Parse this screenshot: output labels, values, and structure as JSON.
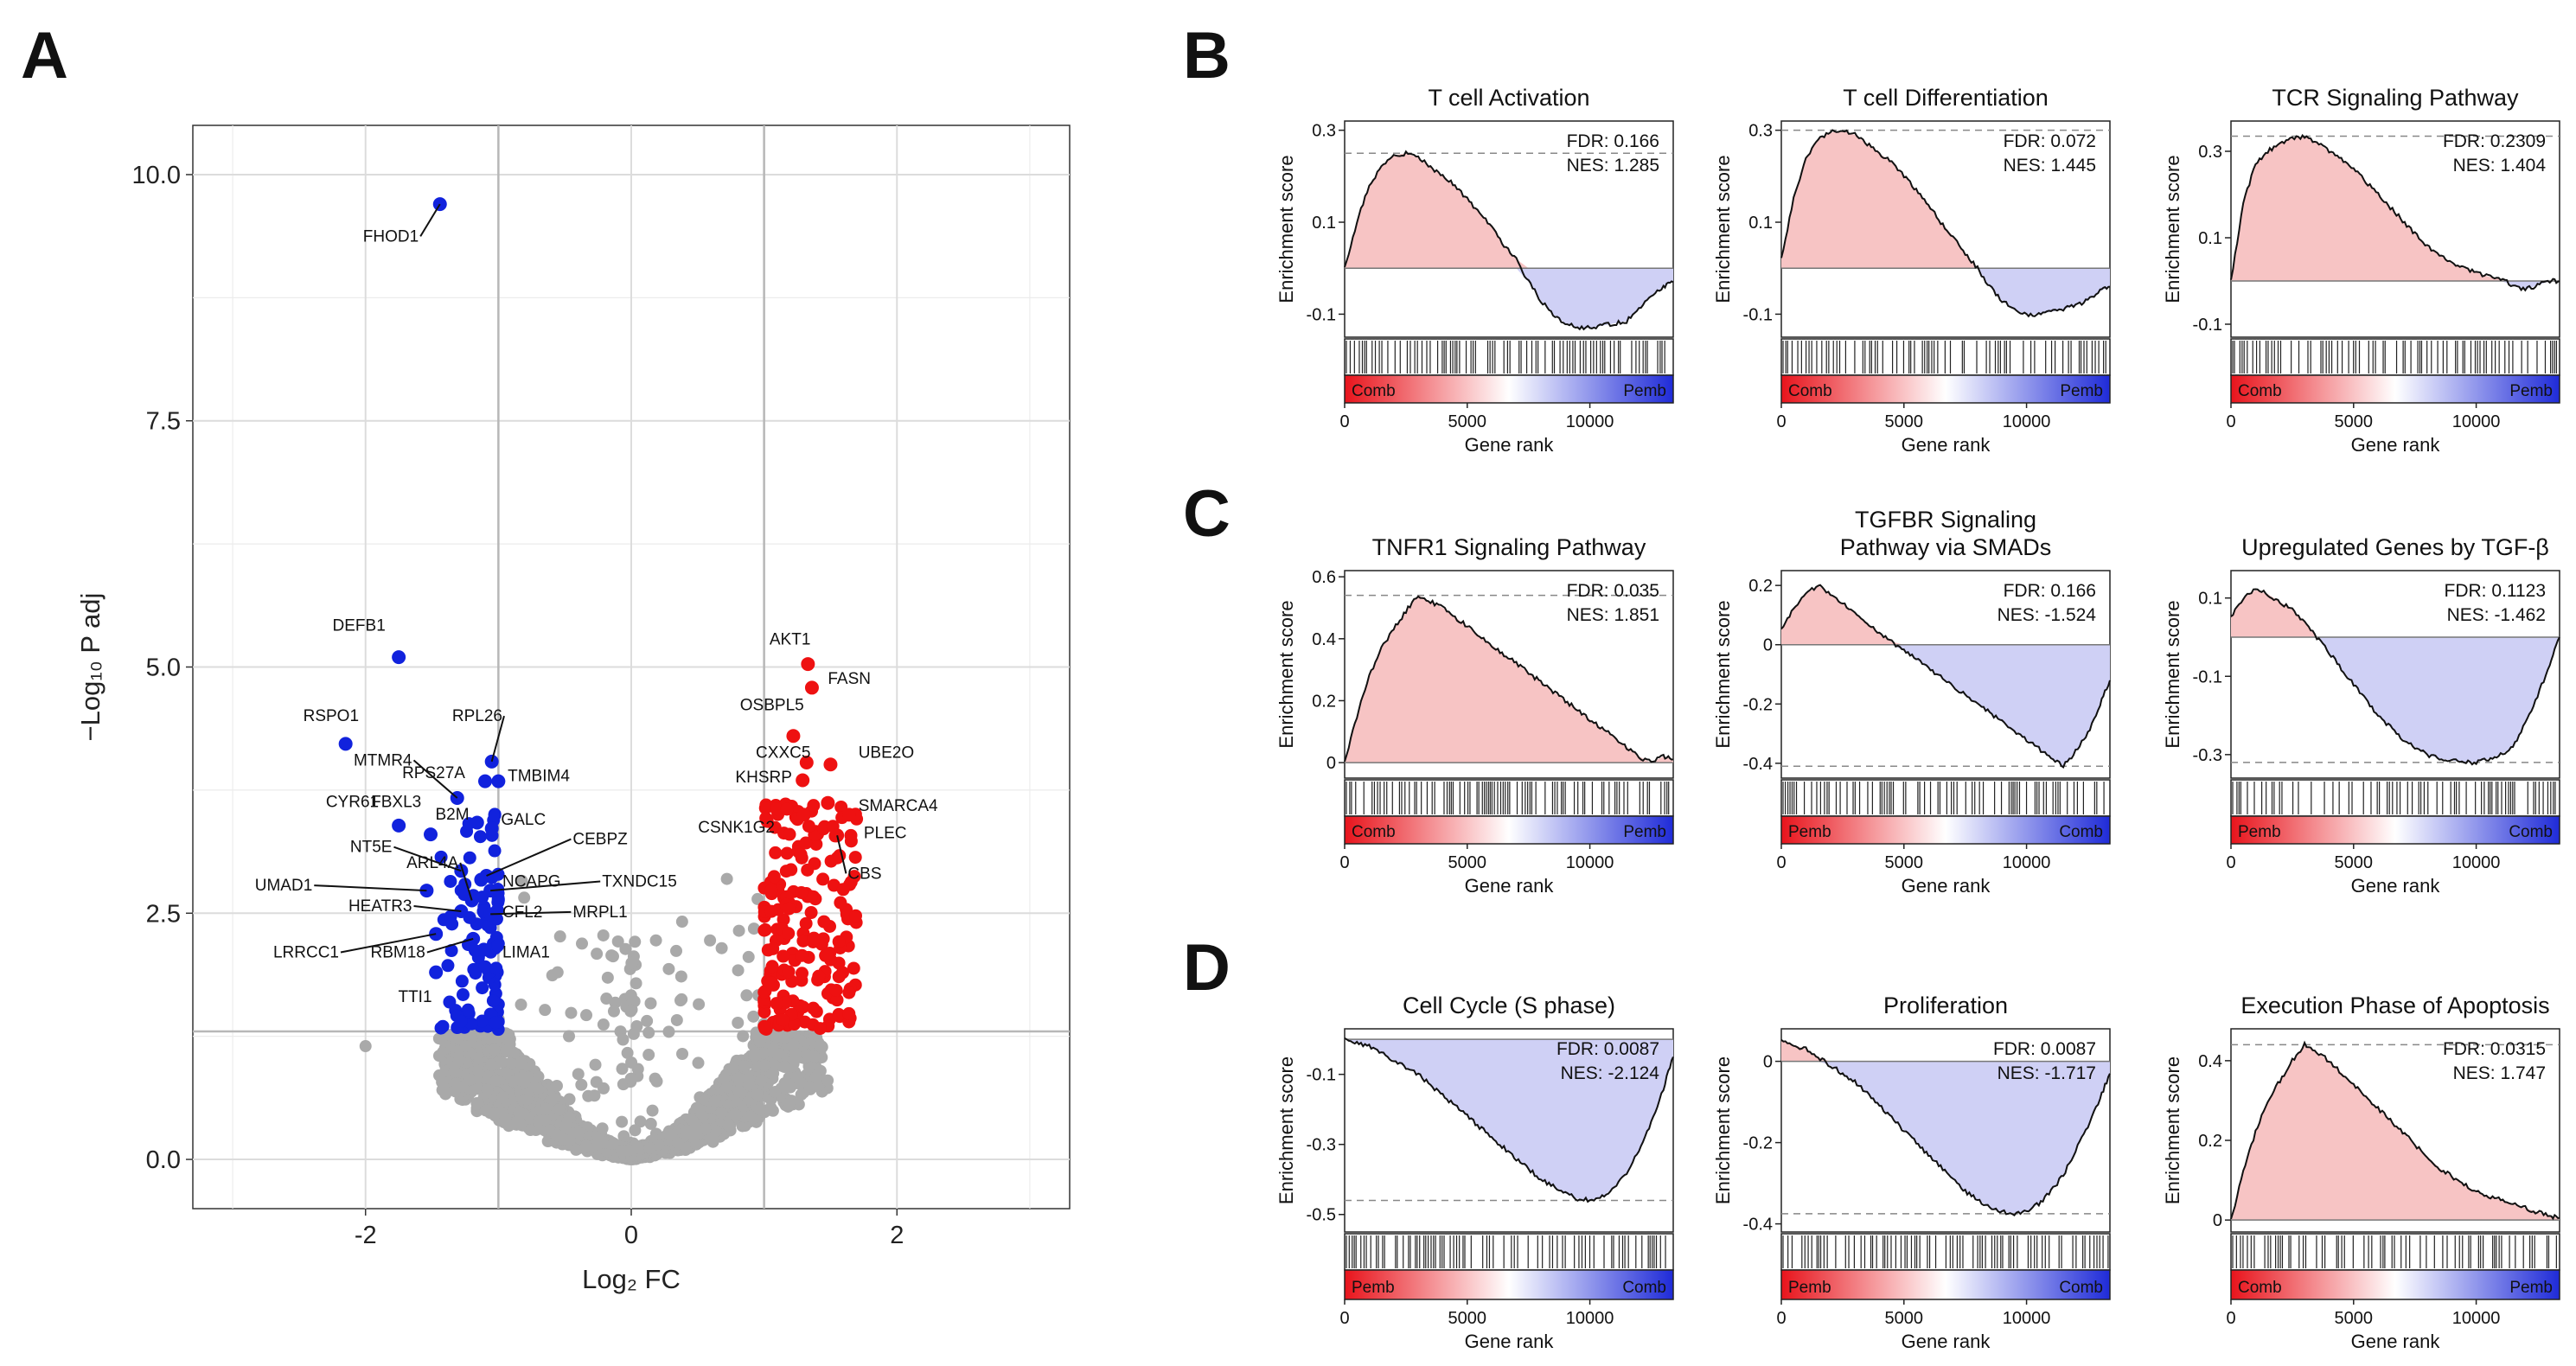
{
  "figure_letters": {
    "a": "A",
    "b": "B",
    "c": "C",
    "d": "D"
  },
  "colors": {
    "up": "#ee1111",
    "down": "#1122dd",
    "ns": "#a9a9a9",
    "pos_fill": "#f7c4c4",
    "neg_fill": "#cfd0f5"
  },
  "chart_data": [
    {
      "type": "scatter",
      "id": "volcano",
      "title": "",
      "xlabel": "Log₂ FC",
      "ylabel": "−Log₁₀ P adj",
      "xlim": [
        -3.3,
        3.3
      ],
      "ylim": [
        -0.5,
        10.5
      ],
      "x_ticks": [
        -2,
        0,
        2
      ],
      "y_ticks": [
        0.0,
        2.5,
        5.0,
        7.5,
        10.0
      ],
      "y_tick_labels": [
        "0.0",
        "2.5",
        "5.0",
        "7.5",
        "10.0"
      ],
      "x_tick_labels": [
        "-2",
        "0",
        "2"
      ],
      "thresholds": {
        "fc": [
          -1,
          1
        ],
        "padj": 1.3
      },
      "labeled_points": [
        {
          "gene": "FHOD1",
          "x": -1.44,
          "y": 9.7,
          "group": "down"
        },
        {
          "gene": "DEFB1",
          "x": -1.75,
          "y": 5.1,
          "group": "down"
        },
        {
          "gene": "RSPO1",
          "x": -2.15,
          "y": 4.22,
          "group": "down"
        },
        {
          "gene": "MTMR4",
          "x": -1.31,
          "y": 3.67,
          "group": "down"
        },
        {
          "gene": "RPS27A",
          "x": -1.1,
          "y": 3.84,
          "group": "down"
        },
        {
          "gene": "RPL26",
          "x": -1.05,
          "y": 4.04,
          "group": "down"
        },
        {
          "gene": "TMBIM4",
          "x": -1.0,
          "y": 3.84,
          "group": "down"
        },
        {
          "gene": "CYR61",
          "x": -1.75,
          "y": 3.39,
          "group": "down"
        },
        {
          "gene": "FBXL3",
          "x": -1.51,
          "y": 3.3,
          "group": "down"
        },
        {
          "gene": "B2M",
          "x": -1.16,
          "y": 3.42,
          "group": "down"
        },
        {
          "gene": "GALC",
          "x": -1.05,
          "y": 3.36,
          "group": "down"
        },
        {
          "gene": "NT5E",
          "x": -1.28,
          "y": 2.93,
          "group": "down"
        },
        {
          "gene": "CEBPZ",
          "x": -1.09,
          "y": 2.88,
          "group": "down"
        },
        {
          "gene": "ARL4A",
          "x": -1.2,
          "y": 2.63,
          "group": "down"
        },
        {
          "gene": "NCAPG",
          "x": -1.13,
          "y": 2.84,
          "group": "down"
        },
        {
          "gene": "TXNDC15",
          "x": -1.06,
          "y": 2.73,
          "group": "down"
        },
        {
          "gene": "UMAD1",
          "x": -1.54,
          "y": 2.73,
          "group": "down"
        },
        {
          "gene": "HEATR3",
          "x": -1.28,
          "y": 2.52,
          "group": "down"
        },
        {
          "gene": "CFL2",
          "x": -1.11,
          "y": 2.52,
          "group": "down"
        },
        {
          "gene": "MRPL1",
          "x": -1.06,
          "y": 2.49,
          "group": "down"
        },
        {
          "gene": "LRRCC1",
          "x": -1.47,
          "y": 2.29,
          "group": "down"
        },
        {
          "gene": "RBM18",
          "x": -1.19,
          "y": 2.24,
          "group": "down"
        },
        {
          "gene": "LIMA1",
          "x": -1.11,
          "y": 2.13,
          "group": "down"
        },
        {
          "gene": "TTI1",
          "x": -1.47,
          "y": 1.9,
          "group": "down"
        },
        {
          "gene": "AKT1",
          "x": 1.33,
          "y": 5.03,
          "group": "up"
        },
        {
          "gene": "FASN",
          "x": 1.36,
          "y": 4.79,
          "group": "up"
        },
        {
          "gene": "OSBPL5",
          "x": 1.22,
          "y": 4.3,
          "group": "up"
        },
        {
          "gene": "CXXC5",
          "x": 1.32,
          "y": 4.03,
          "group": "up"
        },
        {
          "gene": "UBE2O",
          "x": 1.5,
          "y": 4.01,
          "group": "up"
        },
        {
          "gene": "KHSRP",
          "x": 1.29,
          "y": 3.85,
          "group": "up"
        },
        {
          "gene": "SMARCA4",
          "x": 1.48,
          "y": 3.62,
          "group": "up"
        },
        {
          "gene": "CSNK1G2",
          "x": 1.3,
          "y": 3.5,
          "group": "up"
        },
        {
          "gene": "PLEC",
          "x": 1.64,
          "y": 3.5,
          "group": "up"
        },
        {
          "gene": "CBS",
          "x": 1.55,
          "y": 3.29,
          "group": "up"
        }
      ]
    },
    {
      "type": "line",
      "id": "b1",
      "title": "T cell Activation",
      "xlabel": "Gene rank",
      "ylabel": "Enrichment score",
      "ylim": [
        -0.15,
        0.32
      ],
      "y_ticks": [
        -0.1,
        0.1,
        0.3
      ],
      "y_tick_labels": [
        "-0.1",
        "0.1",
        "0.3"
      ],
      "xlim": [
        0,
        13400
      ],
      "x_ticks": [
        0,
        5000,
        10000
      ],
      "x_tick_labels": [
        "0",
        "5000",
        "10000"
      ],
      "x": [
        0,
        500,
        1000,
        1500,
        2000,
        2500,
        3000,
        3500,
        4000,
        4500,
        5000,
        5500,
        6000,
        6500,
        7000,
        7500,
        8000,
        8500,
        9000,
        9500,
        10000,
        10500,
        11000,
        11500,
        12000,
        12500,
        13000,
        13400
      ],
      "values": [
        0.0,
        0.1,
        0.18,
        0.22,
        0.245,
        0.25,
        0.24,
        0.22,
        0.2,
        0.18,
        0.15,
        0.12,
        0.09,
        0.05,
        0.02,
        -0.03,
        -0.07,
        -0.1,
        -0.12,
        -0.13,
        -0.13,
        -0.125,
        -0.12,
        -0.115,
        -0.09,
        -0.06,
        -0.04,
        -0.03
      ],
      "stats": {
        "fdr": "FDR: 0.166",
        "nes": "NES: 1.285"
      },
      "groups": {
        "left": "Comb",
        "right": "Pemb"
      },
      "bar": "red-blue"
    },
    {
      "type": "line",
      "id": "b2",
      "title": "T cell Differentiation",
      "xlabel": "Gene rank",
      "ylabel": "Enrichment score",
      "ylim": [
        -0.15,
        0.32
      ],
      "y_ticks": [
        -0.1,
        0.1,
        0.3
      ],
      "y_tick_labels": [
        "-0.1",
        "0.1",
        "0.3"
      ],
      "xlim": [
        0,
        13400
      ],
      "x_ticks": [
        0,
        5000,
        10000
      ],
      "x_tick_labels": [
        "0",
        "5000",
        "10000"
      ],
      "x": [
        0,
        500,
        1000,
        1500,
        2000,
        2500,
        3000,
        3500,
        4000,
        4500,
        5000,
        5500,
        6000,
        6500,
        7000,
        7500,
        8000,
        8500,
        9000,
        9500,
        10000,
        10500,
        11000,
        11500,
        12000,
        12500,
        13000,
        13400
      ],
      "values": [
        0.02,
        0.15,
        0.24,
        0.28,
        0.295,
        0.3,
        0.29,
        0.27,
        0.25,
        0.23,
        0.2,
        0.17,
        0.14,
        0.1,
        0.07,
        0.03,
        0.0,
        -0.04,
        -0.07,
        -0.09,
        -0.1,
        -0.1,
        -0.095,
        -0.09,
        -0.08,
        -0.07,
        -0.05,
        -0.04
      ],
      "stats": {
        "fdr": "FDR: 0.072",
        "nes": "NES: 1.445"
      },
      "groups": {
        "left": "Comb",
        "right": "Pemb"
      },
      "bar": "red-blue"
    },
    {
      "type": "line",
      "id": "b3",
      "title": "TCR Signaling Pathway",
      "xlabel": "Gene rank",
      "ylabel": "Enrichment score",
      "ylim": [
        -0.13,
        0.37
      ],
      "y_ticks": [
        -0.1,
        0.1,
        0.3
      ],
      "y_tick_labels": [
        "-0.1",
        "0.1",
        "0.3"
      ],
      "xlim": [
        0,
        13400
      ],
      "x_ticks": [
        0,
        5000,
        10000
      ],
      "x_tick_labels": [
        "0",
        "5000",
        "10000"
      ],
      "x": [
        0,
        500,
        1000,
        1500,
        2000,
        2500,
        3000,
        3500,
        4000,
        4500,
        5000,
        5500,
        6000,
        6500,
        7000,
        7500,
        8000,
        8500,
        9000,
        9500,
        10000,
        10500,
        11000,
        11500,
        12000,
        12500,
        13000,
        13400
      ],
      "values": [
        0.0,
        0.18,
        0.27,
        0.3,
        0.32,
        0.33,
        0.335,
        0.32,
        0.3,
        0.28,
        0.26,
        0.23,
        0.2,
        0.17,
        0.14,
        0.11,
        0.08,
        0.06,
        0.04,
        0.03,
        0.02,
        0.01,
        0.005,
        -0.01,
        -0.02,
        -0.01,
        0.0,
        0.0
      ],
      "stats": {
        "fdr": "FDR: 0.2309",
        "nes": "NES: 1.404"
      },
      "groups": {
        "left": "Comb",
        "right": "Pemb"
      },
      "bar": "red-blue"
    },
    {
      "type": "line",
      "id": "c1",
      "title": "TNFR1 Signaling Pathway",
      "xlabel": "Gene rank",
      "ylabel": "Enrichment score",
      "ylim": [
        -0.05,
        0.62
      ],
      "y_ticks": [
        0,
        0.2,
        0.4,
        0.6
      ],
      "y_tick_labels": [
        "0",
        "0.2",
        "0.4",
        "0.6"
      ],
      "xlim": [
        0,
        13400
      ],
      "x_ticks": [
        0,
        5000,
        10000
      ],
      "x_tick_labels": [
        "0",
        "5000",
        "10000"
      ],
      "x": [
        0,
        500,
        1000,
        1500,
        2000,
        2500,
        3000,
        3500,
        4000,
        4500,
        5000,
        5500,
        6000,
        6500,
        7000,
        7500,
        8000,
        8500,
        9000,
        9500,
        10000,
        10500,
        11000,
        11500,
        12000,
        12500,
        13000,
        13400
      ],
      "values": [
        0.0,
        0.15,
        0.28,
        0.37,
        0.43,
        0.49,
        0.54,
        0.52,
        0.5,
        0.47,
        0.44,
        0.41,
        0.38,
        0.35,
        0.32,
        0.29,
        0.26,
        0.23,
        0.2,
        0.17,
        0.14,
        0.11,
        0.08,
        0.05,
        0.02,
        0.0,
        0.02,
        0.01
      ],
      "stats": {
        "fdr": "FDR: 0.035",
        "nes": "NES: 1.851"
      },
      "groups": {
        "left": "Comb",
        "right": "Pemb"
      },
      "bar": "red-blue"
    },
    {
      "type": "line",
      "id": "c2",
      "title": "TGFBR Signaling Pathway via SMADs",
      "title_lines": [
        "TGFBR Signaling",
        "Pathway via SMADs"
      ],
      "xlabel": "Gene rank",
      "ylabel": "Enrichment score",
      "ylim": [
        -0.45,
        0.25
      ],
      "y_ticks": [
        -0.4,
        -0.2,
        0,
        0.2
      ],
      "y_tick_labels": [
        "-0.4",
        "-0.2",
        "0",
        "0.2"
      ],
      "xlim": [
        0,
        13400
      ],
      "x_ticks": [
        0,
        5000,
        10000
      ],
      "x_tick_labels": [
        "0",
        "5000",
        "10000"
      ],
      "x": [
        0,
        500,
        1000,
        1500,
        2000,
        2500,
        3000,
        3500,
        4000,
        4500,
        5000,
        5500,
        6000,
        6500,
        7000,
        7500,
        8000,
        8500,
        9000,
        9500,
        10000,
        10500,
        11000,
        11500,
        12000,
        12500,
        13000,
        13400
      ],
      "values": [
        0.05,
        0.12,
        0.17,
        0.2,
        0.17,
        0.14,
        0.11,
        0.07,
        0.04,
        0.01,
        -0.02,
        -0.05,
        -0.08,
        -0.11,
        -0.14,
        -0.17,
        -0.2,
        -0.23,
        -0.26,
        -0.29,
        -0.32,
        -0.35,
        -0.38,
        -0.41,
        -0.36,
        -0.3,
        -0.2,
        -0.12
      ],
      "stats": {
        "fdr": "FDR: 0.166",
        "nes": "NES: -1.524"
      },
      "groups": {
        "left": "Pemb",
        "right": "Comb"
      },
      "bar": "red-blue"
    },
    {
      "type": "line",
      "id": "c3",
      "title": "Upregulated Genes by TGF-β",
      "xlabel": "Gene rank",
      "ylabel": "Enrichment score",
      "ylim": [
        -0.36,
        0.17
      ],
      "y_ticks": [
        -0.3,
        -0.1,
        0.1
      ],
      "y_tick_labels": [
        "-0.3",
        "-0.1",
        "0.1"
      ],
      "xlim": [
        0,
        13400
      ],
      "x_ticks": [
        0,
        5000,
        10000
      ],
      "x_tick_labels": [
        "0",
        "5000",
        "10000"
      ],
      "x": [
        0,
        500,
        1000,
        1500,
        2000,
        2500,
        3000,
        3500,
        4000,
        4500,
        5000,
        5500,
        6000,
        6500,
        7000,
        7500,
        8000,
        8500,
        9000,
        9500,
        10000,
        10500,
        11000,
        11500,
        12000,
        12500,
        13000,
        13400
      ],
      "values": [
        0.05,
        0.1,
        0.12,
        0.11,
        0.09,
        0.07,
        0.04,
        0.0,
        -0.04,
        -0.08,
        -0.12,
        -0.16,
        -0.2,
        -0.23,
        -0.26,
        -0.28,
        -0.3,
        -0.31,
        -0.315,
        -0.32,
        -0.32,
        -0.31,
        -0.3,
        -0.28,
        -0.22,
        -0.15,
        -0.07,
        0.0
      ],
      "stats": {
        "fdr": "FDR: 0.1123",
        "nes": "NES: -1.462"
      },
      "groups": {
        "left": "Pemb",
        "right": "Comb"
      },
      "bar": "red-blue"
    },
    {
      "type": "line",
      "id": "d1",
      "title": "Cell Cycle (S phase)",
      "xlabel": "Gene rank",
      "ylabel": "Enrichment score",
      "ylim": [
        -0.55,
        0.03
      ],
      "y_ticks": [
        -0.5,
        -0.3,
        -0.1
      ],
      "y_tick_labels": [
        "-0.5",
        "-0.3",
        "-0.1"
      ],
      "xlim": [
        0,
        13400
      ],
      "x_ticks": [
        0,
        5000,
        10000
      ],
      "x_tick_labels": [
        "0",
        "5000",
        "10000"
      ],
      "x": [
        0,
        500,
        1000,
        1500,
        2000,
        2500,
        3000,
        3500,
        4000,
        4500,
        5000,
        5500,
        6000,
        6500,
        7000,
        7500,
        8000,
        8500,
        9000,
        9500,
        10000,
        10500,
        11000,
        11500,
        12000,
        12500,
        13000,
        13400
      ],
      "values": [
        0.0,
        -0.01,
        -0.02,
        -0.04,
        -0.06,
        -0.08,
        -0.1,
        -0.13,
        -0.16,
        -0.19,
        -0.22,
        -0.25,
        -0.28,
        -0.31,
        -0.34,
        -0.37,
        -0.4,
        -0.42,
        -0.44,
        -0.455,
        -0.46,
        -0.45,
        -0.42,
        -0.38,
        -0.32,
        -0.24,
        -0.14,
        -0.05
      ],
      "stats": {
        "fdr": "FDR: 0.0087",
        "nes": "NES: -2.124"
      },
      "groups": {
        "left": "Pemb",
        "right": "Comb"
      },
      "bar": "red-blue"
    },
    {
      "type": "line",
      "id": "d2",
      "title": "Proliferation",
      "xlabel": "Gene rank",
      "ylabel": "Enrichment score",
      "ylim": [
        -0.42,
        0.08
      ],
      "y_ticks": [
        -0.4,
        -0.2,
        0
      ],
      "y_tick_labels": [
        "-0.4",
        "-0.2",
        "0"
      ],
      "xlim": [
        0,
        13400
      ],
      "x_ticks": [
        0,
        5000,
        10000
      ],
      "x_tick_labels": [
        "0",
        "5000",
        "10000"
      ],
      "x": [
        0,
        500,
        1000,
        1500,
        2000,
        2500,
        3000,
        3500,
        4000,
        4500,
        5000,
        5500,
        6000,
        6500,
        7000,
        7500,
        8000,
        8500,
        9000,
        9500,
        10000,
        10500,
        11000,
        11500,
        12000,
        12500,
        13000,
        13400
      ],
      "values": [
        0.05,
        0.04,
        0.03,
        0.01,
        -0.01,
        -0.03,
        -0.05,
        -0.08,
        -0.11,
        -0.14,
        -0.17,
        -0.2,
        -0.23,
        -0.26,
        -0.29,
        -0.32,
        -0.34,
        -0.36,
        -0.37,
        -0.375,
        -0.37,
        -0.35,
        -0.32,
        -0.28,
        -0.22,
        -0.16,
        -0.09,
        -0.03
      ],
      "stats": {
        "fdr": "FDR: 0.0087",
        "nes": "NES: -1.717"
      },
      "groups": {
        "left": "Pemb",
        "right": "Comb"
      },
      "bar": "red-blue"
    },
    {
      "type": "line",
      "id": "d3",
      "title": "Execution Phase of Apoptosis",
      "xlabel": "Gene rank",
      "ylabel": "Enrichment score",
      "ylim": [
        -0.03,
        0.48
      ],
      "y_ticks": [
        0,
        0.2,
        0.4
      ],
      "y_tick_labels": [
        "0",
        "0.2",
        "0.4"
      ],
      "xlim": [
        0,
        13400
      ],
      "x_ticks": [
        0,
        5000,
        10000
      ],
      "x_tick_labels": [
        "0",
        "5000",
        "10000"
      ],
      "x": [
        0,
        500,
        1000,
        1500,
        2000,
        2500,
        3000,
        3500,
        4000,
        4500,
        5000,
        5500,
        6000,
        6500,
        7000,
        7500,
        8000,
        8500,
        9000,
        9500,
        10000,
        10500,
        11000,
        11500,
        12000,
        12500,
        13000,
        13400
      ],
      "values": [
        0.0,
        0.12,
        0.22,
        0.3,
        0.35,
        0.4,
        0.44,
        0.42,
        0.4,
        0.37,
        0.34,
        0.31,
        0.28,
        0.25,
        0.22,
        0.19,
        0.16,
        0.13,
        0.11,
        0.09,
        0.07,
        0.06,
        0.05,
        0.04,
        0.03,
        0.02,
        0.01,
        0.005
      ],
      "stats": {
        "fdr": "FDR: 0.0315",
        "nes": "NES: 1.747"
      },
      "groups": {
        "left": "Comb",
        "right": "Pemb"
      },
      "bar": "red-blue"
    }
  ]
}
